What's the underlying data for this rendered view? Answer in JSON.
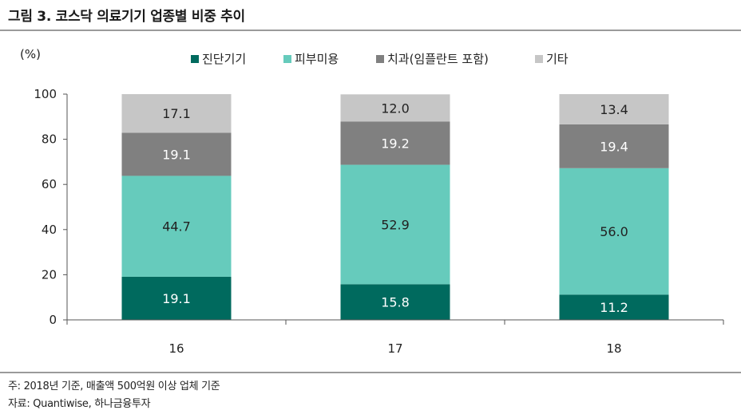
{
  "title": "그림 3. 코스닥 의료기기 업종별 비중 추이",
  "note": "주: 2018년 기준, 매출액 500억원 이상 업체 기준",
  "source": "자료: Quantiwise, 하나금융투자",
  "chart_data": {
    "type": "bar",
    "stacked": true,
    "unit_label": "(%)",
    "categories": [
      "16",
      "17",
      "18"
    ],
    "yticks": [
      "0",
      "20",
      "40",
      "60",
      "80",
      "100"
    ],
    "ylim": [
      0,
      100
    ],
    "legend_position": "top",
    "series": [
      {
        "name": "진단기기",
        "color": "#006a5e",
        "values": [
          19.1,
          15.8,
          11.2
        ],
        "labels": [
          "19.1",
          "15.8",
          "11.2"
        ],
        "label_color": "#ffffff"
      },
      {
        "name": "피부미용",
        "color": "#66cbbc",
        "values": [
          44.7,
          52.9,
          56.0
        ],
        "labels": [
          "44.7",
          "52.9",
          "56.0"
        ],
        "label_color": "#222222"
      },
      {
        "name": "치과(임플란트 포함)",
        "color": "#808080",
        "values": [
          19.1,
          19.2,
          19.4
        ],
        "labels": [
          "19.1",
          "19.2",
          "19.4"
        ],
        "label_color": "#ffffff"
      },
      {
        "name": "기타",
        "color": "#c6c6c6",
        "values": [
          17.1,
          12.0,
          13.4
        ],
        "labels": [
          "17.1",
          "12.0",
          "13.4"
        ],
        "label_color": "#222222"
      }
    ]
  }
}
